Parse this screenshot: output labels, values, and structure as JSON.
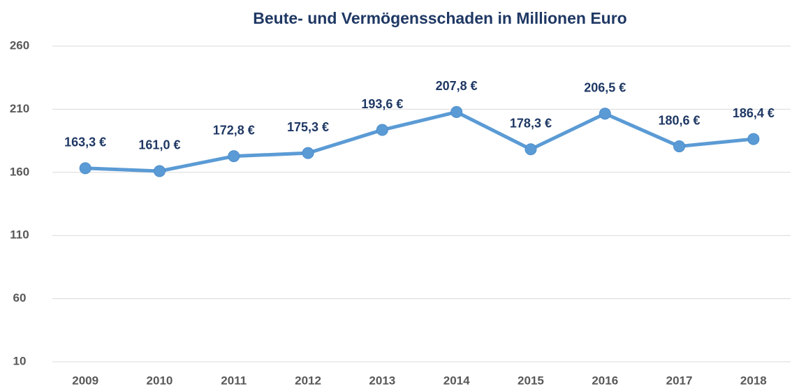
{
  "chart_data": {
    "type": "line",
    "title": "Beute- und Vermögensschaden in Millionen Euro",
    "categories": [
      "2009",
      "2010",
      "2011",
      "2012",
      "2013",
      "2014",
      "2015",
      "2016",
      "2017",
      "2018"
    ],
    "values": [
      163.3,
      161.0,
      172.8,
      175.3,
      193.6,
      207.8,
      178.3,
      206.5,
      180.6,
      186.4
    ],
    "value_labels": [
      "163,3 €",
      "161,0 €",
      "172,8 €",
      "175,3 €",
      "193,6 €",
      "207,8 €",
      "178,3 €",
      "206,5 €",
      "180,6 €",
      "186,4 €"
    ],
    "color": "#5b9bd5",
    "ylim": [
      10,
      260
    ],
    "yticks": [
      10,
      60,
      110,
      160,
      210,
      260
    ],
    "grid": true
  }
}
